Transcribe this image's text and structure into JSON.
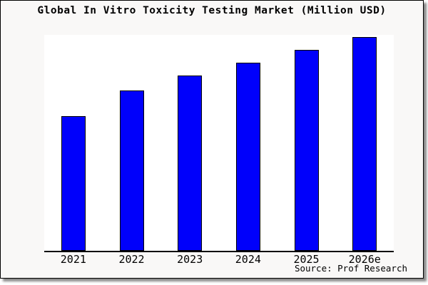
{
  "title": "Global In Vitro Toxicity Testing Market (Million USD)",
  "source": "Source: Prof Research",
  "colors": {
    "card_background": "#f9f8f7",
    "plot_background": "#ffffff",
    "bar_fill": "#0000fb",
    "bar_border": "#000000",
    "axis": "#000000",
    "text": "#000000",
    "shadow": "#8a8a8a"
  },
  "chart_data": {
    "type": "bar",
    "title": "Global In Vitro Toxicity Testing Market (Million USD)",
    "categories": [
      "2021",
      "2022",
      "2023",
      "2024",
      "2025",
      "2026e"
    ],
    "values": [
      63,
      75,
      82,
      88,
      94,
      100
    ],
    "value_note": "No y-axis or data labels shown in image; values are estimated bar heights relative to the tallest bar (2026e = 100)",
    "xlabel": "",
    "ylabel": "",
    "ylim": [
      0,
      101
    ],
    "grid": false,
    "legend": false,
    "source_label": "Source: Prof Research"
  }
}
